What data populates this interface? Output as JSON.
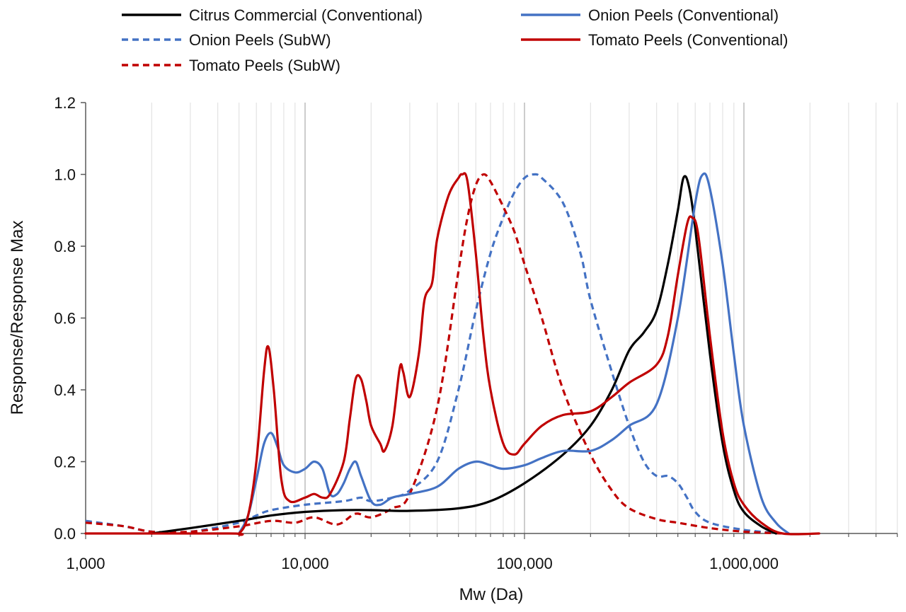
{
  "chart_data": {
    "type": "line",
    "title": "",
    "xlabel": "Mw (Da)",
    "ylabel": "Response/Response Max",
    "xscale": "log",
    "xlim": [
      1000,
      5000000
    ],
    "ylim": [
      0,
      1.2
    ],
    "x_ticks": [
      1000,
      10000,
      100000,
      1000000
    ],
    "x_tick_labels": [
      "1,000",
      "10,000",
      "100,000",
      "1,000,000"
    ],
    "y_ticks": [
      0,
      0.2,
      0.4,
      0.6,
      0.8,
      1.0,
      1.2
    ],
    "y_tick_labels": [
      "0.0",
      "0.2",
      "0.4",
      "0.6",
      "0.8",
      "1.0",
      "1.2"
    ],
    "grid": "vertical minor lines",
    "legend_position": "top",
    "series": [
      {
        "name": "Citrus Commercial (Conventional)",
        "color": "#000000",
        "dash": "solid",
        "points": [
          [
            2000,
            0.0
          ],
          [
            3000,
            0.015
          ],
          [
            5000,
            0.035
          ],
          [
            7000,
            0.05
          ],
          [
            10000,
            0.06
          ],
          [
            15000,
            0.065
          ],
          [
            20000,
            0.065
          ],
          [
            30000,
            0.063
          ],
          [
            50000,
            0.07
          ],
          [
            70000,
            0.09
          ],
          [
            100000,
            0.14
          ],
          [
            150000,
            0.22
          ],
          [
            200000,
            0.3
          ],
          [
            250000,
            0.4
          ],
          [
            300000,
            0.51
          ],
          [
            350000,
            0.56
          ],
          [
            400000,
            0.62
          ],
          [
            450000,
            0.75
          ],
          [
            500000,
            0.9
          ],
          [
            530000,
            0.99
          ],
          [
            560000,
            0.97
          ],
          [
            600000,
            0.85
          ],
          [
            700000,
            0.5
          ],
          [
            800000,
            0.25
          ],
          [
            900000,
            0.12
          ],
          [
            1000000,
            0.06
          ],
          [
            1200000,
            0.02
          ],
          [
            1400000,
            0.0
          ]
        ]
      },
      {
        "name": "Onion Peels (Conventional)",
        "color": "#4472C4",
        "dash": "solid",
        "points": [
          [
            5000,
            0.0
          ],
          [
            5500,
            0.05
          ],
          [
            6000,
            0.15
          ],
          [
            6500,
            0.25
          ],
          [
            7000,
            0.28
          ],
          [
            7500,
            0.24
          ],
          [
            8000,
            0.19
          ],
          [
            9000,
            0.17
          ],
          [
            10000,
            0.18
          ],
          [
            11000,
            0.2
          ],
          [
            12000,
            0.18
          ],
          [
            13000,
            0.11
          ],
          [
            14000,
            0.11
          ],
          [
            15000,
            0.14
          ],
          [
            16000,
            0.18
          ],
          [
            17000,
            0.2
          ],
          [
            18000,
            0.16
          ],
          [
            20000,
            0.09
          ],
          [
            22000,
            0.08
          ],
          [
            25000,
            0.1
          ],
          [
            30000,
            0.11
          ],
          [
            40000,
            0.13
          ],
          [
            50000,
            0.18
          ],
          [
            60000,
            0.2
          ],
          [
            70000,
            0.19
          ],
          [
            80000,
            0.18
          ],
          [
            100000,
            0.19
          ],
          [
            120000,
            0.21
          ],
          [
            150000,
            0.23
          ],
          [
            200000,
            0.23
          ],
          [
            250000,
            0.26
          ],
          [
            300000,
            0.3
          ],
          [
            400000,
            0.36
          ],
          [
            500000,
            0.6
          ],
          [
            600000,
            0.92
          ],
          [
            650000,
            1.0
          ],
          [
            700000,
            0.96
          ],
          [
            800000,
            0.75
          ],
          [
            900000,
            0.5
          ],
          [
            1000000,
            0.3
          ],
          [
            1200000,
            0.1
          ],
          [
            1400000,
            0.03
          ],
          [
            1600000,
            0.0
          ]
        ]
      },
      {
        "name": "Onion Peels (SubW)",
        "color": "#4472C4",
        "dash": "dashed",
        "points": [
          [
            1000,
            0.035
          ],
          [
            1500,
            0.02
          ],
          [
            2000,
            0.005
          ],
          [
            3000,
            0.005
          ],
          [
            5000,
            0.03
          ],
          [
            6000,
            0.05
          ],
          [
            7000,
            0.065
          ],
          [
            10000,
            0.08
          ],
          [
            15000,
            0.09
          ],
          [
            18000,
            0.1
          ],
          [
            20000,
            0.09
          ],
          [
            25000,
            0.1
          ],
          [
            30000,
            0.12
          ],
          [
            40000,
            0.2
          ],
          [
            50000,
            0.4
          ],
          [
            60000,
            0.62
          ],
          [
            70000,
            0.78
          ],
          [
            80000,
            0.88
          ],
          [
            90000,
            0.95
          ],
          [
            100000,
            0.99
          ],
          [
            110000,
            1.0
          ],
          [
            120000,
            0.99
          ],
          [
            150000,
            0.92
          ],
          [
            180000,
            0.78
          ],
          [
            200000,
            0.65
          ],
          [
            250000,
            0.45
          ],
          [
            300000,
            0.3
          ],
          [
            350000,
            0.2
          ],
          [
            400000,
            0.16
          ],
          [
            450000,
            0.16
          ],
          [
            500000,
            0.14
          ],
          [
            550000,
            0.1
          ],
          [
            600000,
            0.06
          ],
          [
            700000,
            0.03
          ],
          [
            1000000,
            0.01
          ],
          [
            1500000,
            0.0
          ]
        ]
      },
      {
        "name": "Tomato Peels (Conventional)",
        "color": "#C00000",
        "dash": "solid",
        "points": [
          [
            1000,
            0.0
          ],
          [
            4500,
            0.0
          ],
          [
            5000,
            0.0
          ],
          [
            5500,
            0.05
          ],
          [
            6000,
            0.2
          ],
          [
            6500,
            0.45
          ],
          [
            6800,
            0.52
          ],
          [
            7200,
            0.4
          ],
          [
            7800,
            0.15
          ],
          [
            8500,
            0.09
          ],
          [
            10000,
            0.1
          ],
          [
            11000,
            0.11
          ],
          [
            12000,
            0.1
          ],
          [
            13000,
            0.11
          ],
          [
            15000,
            0.2
          ],
          [
            16000,
            0.32
          ],
          [
            17000,
            0.43
          ],
          [
            18000,
            0.43
          ],
          [
            19000,
            0.37
          ],
          [
            20000,
            0.3
          ],
          [
            22000,
            0.25
          ],
          [
            23000,
            0.23
          ],
          [
            25000,
            0.3
          ],
          [
            27000,
            0.46
          ],
          [
            28000,
            0.45
          ],
          [
            30000,
            0.38
          ],
          [
            33000,
            0.5
          ],
          [
            35000,
            0.65
          ],
          [
            38000,
            0.7
          ],
          [
            40000,
            0.82
          ],
          [
            45000,
            0.94
          ],
          [
            50000,
            0.99
          ],
          [
            52000,
            1.0
          ],
          [
            55000,
            0.98
          ],
          [
            60000,
            0.78
          ],
          [
            65000,
            0.55
          ],
          [
            70000,
            0.4
          ],
          [
            80000,
            0.25
          ],
          [
            90000,
            0.22
          ],
          [
            100000,
            0.25
          ],
          [
            120000,
            0.3
          ],
          [
            150000,
            0.33
          ],
          [
            200000,
            0.34
          ],
          [
            250000,
            0.38
          ],
          [
            300000,
            0.42
          ],
          [
            400000,
            0.47
          ],
          [
            450000,
            0.55
          ],
          [
            500000,
            0.72
          ],
          [
            550000,
            0.86
          ],
          [
            580000,
            0.88
          ],
          [
            620000,
            0.83
          ],
          [
            700000,
            0.55
          ],
          [
            800000,
            0.28
          ],
          [
            900000,
            0.14
          ],
          [
            1000000,
            0.08
          ],
          [
            1200000,
            0.03
          ],
          [
            1500000,
            0.0
          ],
          [
            2200000,
            0.0
          ]
        ]
      },
      {
        "name": "Tomato Peels (SubW)",
        "color": "#C00000",
        "dash": "dashed",
        "points": [
          [
            1000,
            0.03
          ],
          [
            1500,
            0.02
          ],
          [
            2000,
            0.005
          ],
          [
            3000,
            0.005
          ],
          [
            5000,
            0.02
          ],
          [
            7000,
            0.035
          ],
          [
            9000,
            0.03
          ],
          [
            11000,
            0.045
          ],
          [
            14000,
            0.025
          ],
          [
            17000,
            0.055
          ],
          [
            20000,
            0.045
          ],
          [
            25000,
            0.07
          ],
          [
            30000,
            0.11
          ],
          [
            40000,
            0.35
          ],
          [
            50000,
            0.73
          ],
          [
            55000,
            0.88
          ],
          [
            60000,
            0.97
          ],
          [
            65000,
            1.0
          ],
          [
            70000,
            0.98
          ],
          [
            80000,
            0.91
          ],
          [
            90000,
            0.84
          ],
          [
            100000,
            0.75
          ],
          [
            120000,
            0.6
          ],
          [
            150000,
            0.4
          ],
          [
            200000,
            0.22
          ],
          [
            250000,
            0.12
          ],
          [
            300000,
            0.07
          ],
          [
            400000,
            0.04
          ],
          [
            500000,
            0.03
          ],
          [
            700000,
            0.015
          ],
          [
            1000000,
            0.005
          ],
          [
            1500000,
            0.0
          ]
        ]
      }
    ]
  }
}
